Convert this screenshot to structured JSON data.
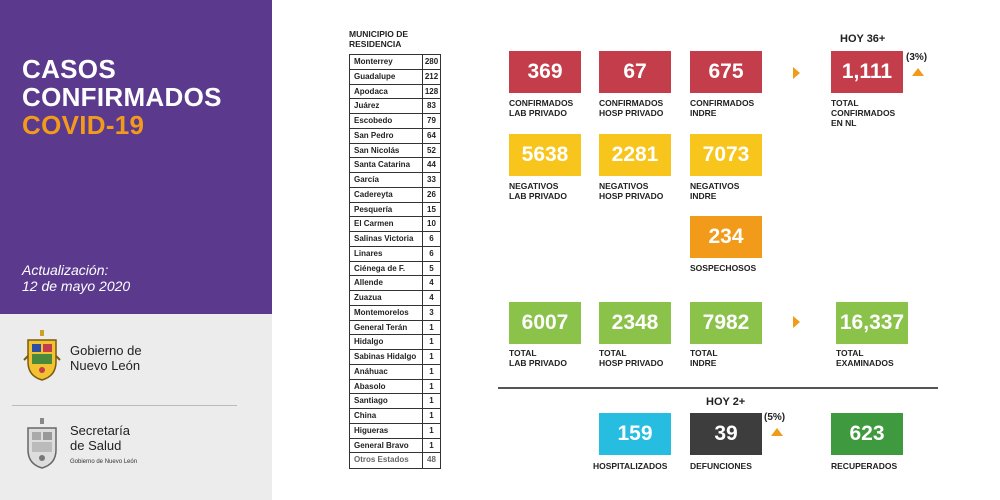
{
  "sidebar": {
    "title_line1": "CASOS",
    "title_line2": "CONFIRMADOS",
    "title_line3": "COVID-19",
    "update_label": "Actualización:",
    "update_date": "12 de mayo 2020",
    "logo1_line1": "Gobierno de",
    "logo1_line2": "Nuevo León",
    "logo2_line1": "Secretaría",
    "logo2_line2": "de Salud",
    "logo2_sub": "Gobierno de Nuevo León"
  },
  "municipios": {
    "header_line1": "MUNICIPIO DE",
    "header_line2": "RESIDENCIA",
    "rows": [
      {
        "name": "Monterrey",
        "value": "280"
      },
      {
        "name": "Guadalupe",
        "value": "212"
      },
      {
        "name": "Apodaca",
        "value": "128"
      },
      {
        "name": "Juárez",
        "value": "83"
      },
      {
        "name": "Escobedo",
        "value": "79"
      },
      {
        "name": "San Pedro",
        "value": "64"
      },
      {
        "name": "San Nicolás",
        "value": "52"
      },
      {
        "name": "Santa Catarina",
        "value": "44"
      },
      {
        "name": "García",
        "value": "33"
      },
      {
        "name": "Cadereyta",
        "value": "26"
      },
      {
        "name": "Pesquería",
        "value": "15"
      },
      {
        "name": "El Carmen",
        "value": "10"
      },
      {
        "name": "Salinas Victoria",
        "value": "6"
      },
      {
        "name": "Linares",
        "value": "6"
      },
      {
        "name": "Ciénega de F.",
        "value": "5"
      },
      {
        "name": "Allende",
        "value": "4"
      },
      {
        "name": "Zuazua",
        "value": "4"
      },
      {
        "name": "Montemorelos",
        "value": "3"
      },
      {
        "name": "General Terán",
        "value": "1"
      },
      {
        "name": "Hidalgo",
        "value": "1"
      },
      {
        "name": "Sabinas Hidalgo",
        "value": "1"
      },
      {
        "name": "Anáhuac",
        "value": "1"
      },
      {
        "name": "Abasolo",
        "value": "1"
      },
      {
        "name": "Santiago",
        "value": "1"
      },
      {
        "name": "China",
        "value": "1"
      },
      {
        "name": "Higueras",
        "value": "1"
      },
      {
        "name": "General Bravo",
        "value": "1"
      },
      {
        "name": "Otros Estados",
        "value": "48"
      }
    ]
  },
  "stats": {
    "hoy_confirmados": "HOY 36+",
    "pct_confirmados": "(3%)",
    "conf_lab": {
      "value": "369",
      "label": "CONFIRMADOS\nLAB PRIVADO"
    },
    "conf_hosp": {
      "value": "67",
      "label": "CONFIRMADOS\nHOSP PRIVADO"
    },
    "conf_indre": {
      "value": "675",
      "label": "CONFIRMADOS\nINDRE"
    },
    "conf_total": {
      "value": "1,111",
      "label": "TOTAL\nCONFIRMADOS\nEN NL"
    },
    "neg_lab": {
      "value": "5638",
      "label": "NEGATIVOS\nLAB PRIVADO"
    },
    "neg_hosp": {
      "value": "2281",
      "label": "NEGATIVOS\nHOSP PRIVADO"
    },
    "neg_indre": {
      "value": "7073",
      "label": "NEGATIVOS\nINDRE"
    },
    "sospechosos": {
      "value": "234",
      "label": "SOSPECHOSOS"
    },
    "tot_lab": {
      "value": "6007",
      "label": "TOTAL\nLAB PRIVADO"
    },
    "tot_hosp": {
      "value": "2348",
      "label": "TOTAL\nHOSP PRIVADO"
    },
    "tot_indre": {
      "value": "7982",
      "label": "TOTAL\nINDRE"
    },
    "tot_exam": {
      "value": "16,337",
      "label": "TOTAL\nEXAMINADOS"
    },
    "hoy_defunciones": "HOY 2+",
    "pct_defunciones": "(5%)",
    "hospitalizados": {
      "value": "159",
      "label": "HOSPITALIZADOS"
    },
    "defunciones": {
      "value": "39",
      "label": "DEFUNCIONES"
    },
    "recuperados": {
      "value": "623",
      "label": "RECUPERADOS"
    }
  },
  "colors": {
    "purple": "#5b3a8e",
    "red": "#c43d4b",
    "yellow": "#f7c51b",
    "orange": "#f29a1a",
    "green": "#8bc24a",
    "cyan": "#27bde1",
    "dark": "#3d3d3d",
    "dark_green": "#3f9a3f"
  }
}
